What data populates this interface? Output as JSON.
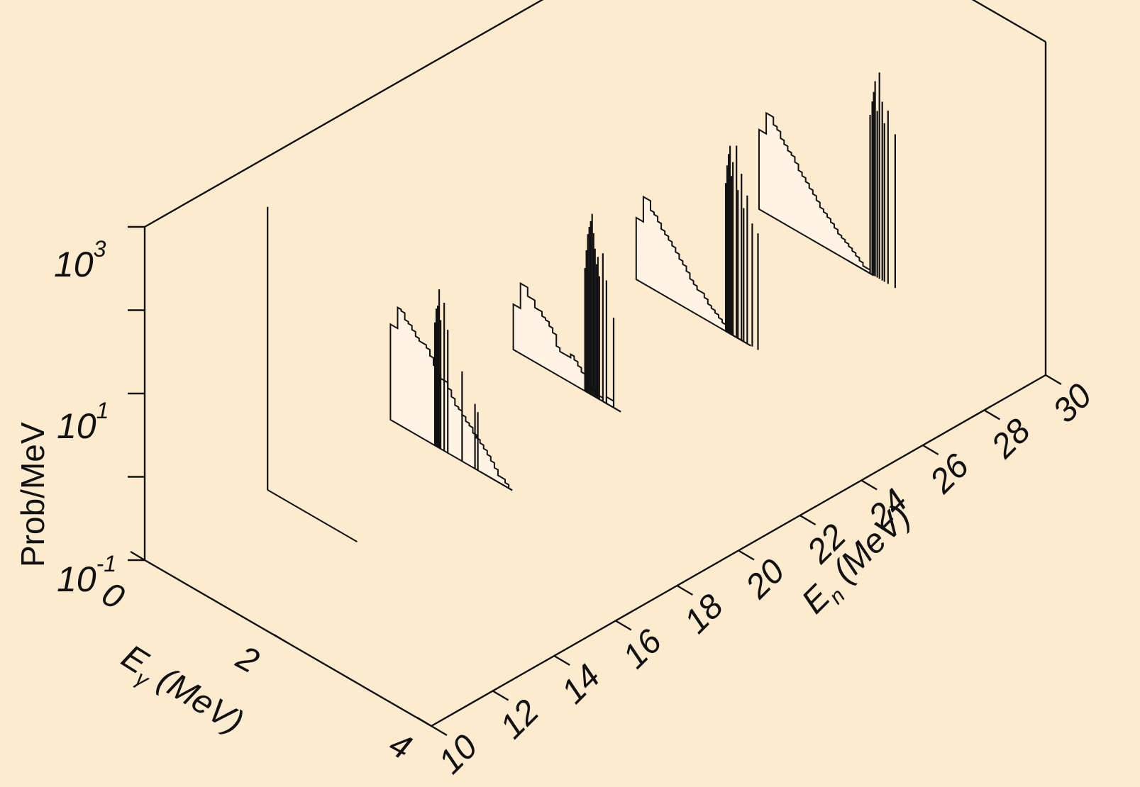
{
  "chart_data": {
    "type": "3d-waterfall-histogram",
    "background_color": "#fdebd0",
    "line_color": "#111111",
    "z_axis": {
      "label": "Prob/MeV",
      "scale": "log",
      "range": [
        0.1,
        1000
      ],
      "ticks": [
        {
          "value": 0.1,
          "base": "10",
          "exp": "-1"
        },
        {
          "value": 10,
          "base": "10",
          "exp": "1"
        },
        {
          "value": 1000,
          "base": "10",
          "exp": "3"
        }
      ]
    },
    "x_axis": {
      "label_base": "E",
      "label_sub": "γ",
      "label_rest": " (MeV)",
      "range": [
        0,
        4
      ],
      "ticks": [
        "0",
        "2",
        "4"
      ]
    },
    "y_axis": {
      "label_base": "E",
      "label_sub": "n",
      "label_rest": " (MeV)",
      "range": [
        10,
        30
      ],
      "ticks": [
        "10",
        "12",
        "14",
        "16",
        "18",
        "20",
        "22",
        "24",
        "26",
        "28",
        "30"
      ]
    },
    "series": [
      {
        "En": 14,
        "lines": [
          [
            0.0,
            250
          ]
        ],
        "hist": {
          "bin_width": 0.1,
          "start": 0.0,
          "values": []
        }
      },
      {
        "En": 18,
        "lines": [
          [
            0.62,
            3
          ],
          [
            0.64,
            4.5
          ],
          [
            0.66,
            5
          ],
          [
            0.68,
            8
          ],
          [
            0.7,
            3.5
          ],
          [
            0.75,
            6
          ],
          [
            0.8,
            3
          ],
          [
            1.0,
            1.2
          ],
          [
            1.18,
            0.6
          ],
          [
            1.22,
            0.5
          ]
        ],
        "hist": {
          "bin_width": 0.05,
          "start": 0.0,
          "values": [
            1.4,
            1.4,
            2.5,
            2.4,
            2.0,
            1.9,
            1.7,
            1.5,
            1.4,
            1.4,
            1.3,
            1.1,
            0.9,
            0.8,
            0.7,
            0.7,
            0.6,
            0.5,
            0.42,
            0.4,
            0.36,
            0.32,
            0.3,
            0.26,
            0.24,
            0.22,
            0.2,
            0.18,
            0.16,
            0.14,
            0.12,
            0.12,
            0.11,
            0.1
          ]
        }
      },
      {
        "En": 22,
        "lines": [
          [
            1.0,
            3
          ],
          [
            1.02,
            5
          ],
          [
            1.04,
            8
          ],
          [
            1.06,
            10
          ],
          [
            1.08,
            12
          ],
          [
            1.1,
            15
          ],
          [
            1.12,
            9
          ],
          [
            1.14,
            6
          ],
          [
            1.16,
            4
          ],
          [
            1.18,
            5
          ],
          [
            1.2,
            3
          ],
          [
            1.25,
            6
          ],
          [
            1.3,
            3
          ],
          [
            1.4,
            1.2
          ]
        ],
        "hist": {
          "bin_width": 0.05,
          "start": 0.0,
          "values": [
            0.35,
            0.35,
            0.7,
            0.7,
            0.55,
            0.55,
            0.45,
            0.45,
            0.4,
            0.38,
            0.34,
            0.3,
            0.22,
            0.2,
            0.2,
            0.2,
            0.22,
            0.2,
            0.18,
            0.16,
            0.14,
            0.12,
            0.12,
            0.11,
            0.11,
            0.1,
            0.12,
            0.12,
            0.1,
            0.1
          ]
        }
      },
      {
        "En": 26,
        "lines": [
          [
            1.25,
            6
          ],
          [
            1.27,
            10
          ],
          [
            1.29,
            14
          ],
          [
            1.31,
            18
          ],
          [
            1.33,
            8
          ],
          [
            1.35,
            12
          ],
          [
            1.4,
            20
          ],
          [
            1.42,
            6
          ],
          [
            1.47,
            10
          ],
          [
            1.5,
            4
          ],
          [
            1.55,
            6
          ],
          [
            1.62,
            3
          ],
          [
            1.7,
            2.5
          ]
        ],
        "hist": {
          "bin_width": 0.05,
          "start": 0.0,
          "values": [
            0.55,
            0.55,
            1.1,
            1.1,
            0.85,
            0.8,
            0.7,
            0.6,
            0.55,
            0.5,
            0.45,
            0.4,
            0.35,
            0.32,
            0.28,
            0.24,
            0.22,
            0.2,
            0.2,
            0.18,
            0.16,
            0.15,
            0.14,
            0.13,
            0.12,
            0.12,
            0.11,
            0.1,
            0.1,
            0.1,
            0.1,
            0.1
          ]
        }
      },
      {
        "En": 30,
        "lines": [
          [
            1.55,
            8
          ],
          [
            1.58,
            12
          ],
          [
            1.6,
            16
          ],
          [
            1.62,
            22
          ],
          [
            1.65,
            10
          ],
          [
            1.68,
            30
          ],
          [
            1.72,
            14
          ],
          [
            1.75,
            8
          ],
          [
            1.8,
            12
          ],
          [
            1.9,
            7
          ]
        ],
        "hist": {
          "bin_width": 0.05,
          "start": 0.0,
          "values": [
            0.9,
            0.9,
            1.6,
            1.6,
            1.3,
            1.2,
            1.0,
            0.9,
            0.8,
            0.75,
            0.65,
            0.55,
            0.5,
            0.45,
            0.4,
            0.36,
            0.32,
            0.28,
            0.26,
            0.24,
            0.22,
            0.2,
            0.18,
            0.17,
            0.16,
            0.15,
            0.14,
            0.13,
            0.12,
            0.11,
            0.11,
            0.1
          ]
        }
      }
    ]
  }
}
